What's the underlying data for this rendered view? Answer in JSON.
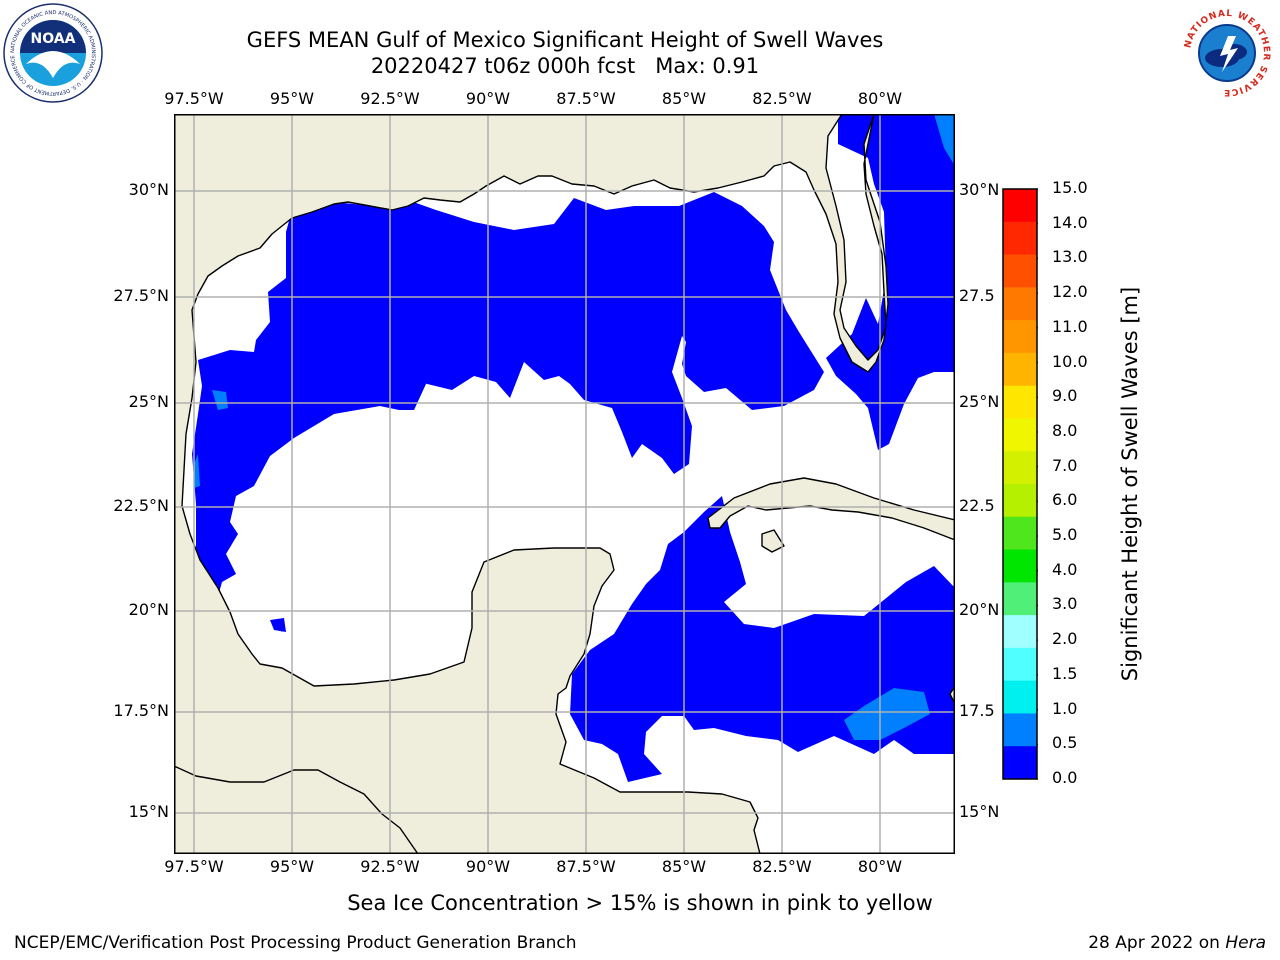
{
  "title": {
    "line1": "GEFS MEAN Gulf of Mexico Significant Height of Swell Waves",
    "line2": "20220427 t06z 000h fcst   Max: 0.91"
  },
  "logos": {
    "left": "noaa-logo",
    "right": "national-weather-service-logo",
    "right_text": "NATIONAL WEATHER SERVICE",
    "left_text": "NATIONAL OCEANIC AND ATMOSPHERIC ADMINISTRATION · U.S. DEPARTMENT OF COMMERCE",
    "left_center": "NOAA"
  },
  "map": {
    "top_lon_labels": [
      "97.5°W",
      "95°W",
      "92.5°W",
      "90°W",
      "87.5°W",
      "85°W",
      "82.5°W",
      "80°W"
    ],
    "bottom_lon_labels": [
      "97.5°W",
      "95°W",
      "92.5°W",
      "90°W",
      "87.5°W",
      "85°W",
      "82.5°W",
      "80°W"
    ],
    "left_lat_labels": [
      "30°N",
      "27.5°N",
      "25°N",
      "22.5°N",
      "20°N",
      "17.5°N",
      "15°N"
    ],
    "right_lat_labels": [
      "30°N",
      "27.5",
      "25°N",
      "22.5",
      "20°N",
      "17.5",
      "15°N"
    ],
    "colors": {
      "land": "#efeedd",
      "ocean_below": "#ffffff",
      "band_0_0p5": "#0000ff",
      "band_0p5_1": "#007fff",
      "grid": "#b0b0b0"
    }
  },
  "colorbar": {
    "label": "Significant Height of Swell Waves [m]",
    "ticks": [
      "15.0",
      "14.0",
      "13.0",
      "12.0",
      "11.0",
      "10.0",
      "9.0",
      "8.0",
      "7.0",
      "6.0",
      "5.0",
      "4.0",
      "3.0",
      "2.0",
      "1.5",
      "1.0",
      "0.5",
      "0.0"
    ],
    "colors": [
      "#ff0000",
      "#ff2800",
      "#ff5000",
      "#ff7800",
      "#ff9600",
      "#ffb400",
      "#ffe600",
      "#f0f500",
      "#d2f000",
      "#b4f000",
      "#50e61e",
      "#00e600",
      "#50f078",
      "#a0ffff",
      "#50ffff",
      "#00f0f0",
      "#007fff",
      "#0000ff"
    ]
  },
  "note": "Sea Ice Concentration > 15% is shown in pink to yellow",
  "footer": {
    "left": "NCEP/EMC/Verification Post Processing Product Generation Branch",
    "right_prefix": "28 Apr 2022 on ",
    "right_italic": "Hera"
  }
}
